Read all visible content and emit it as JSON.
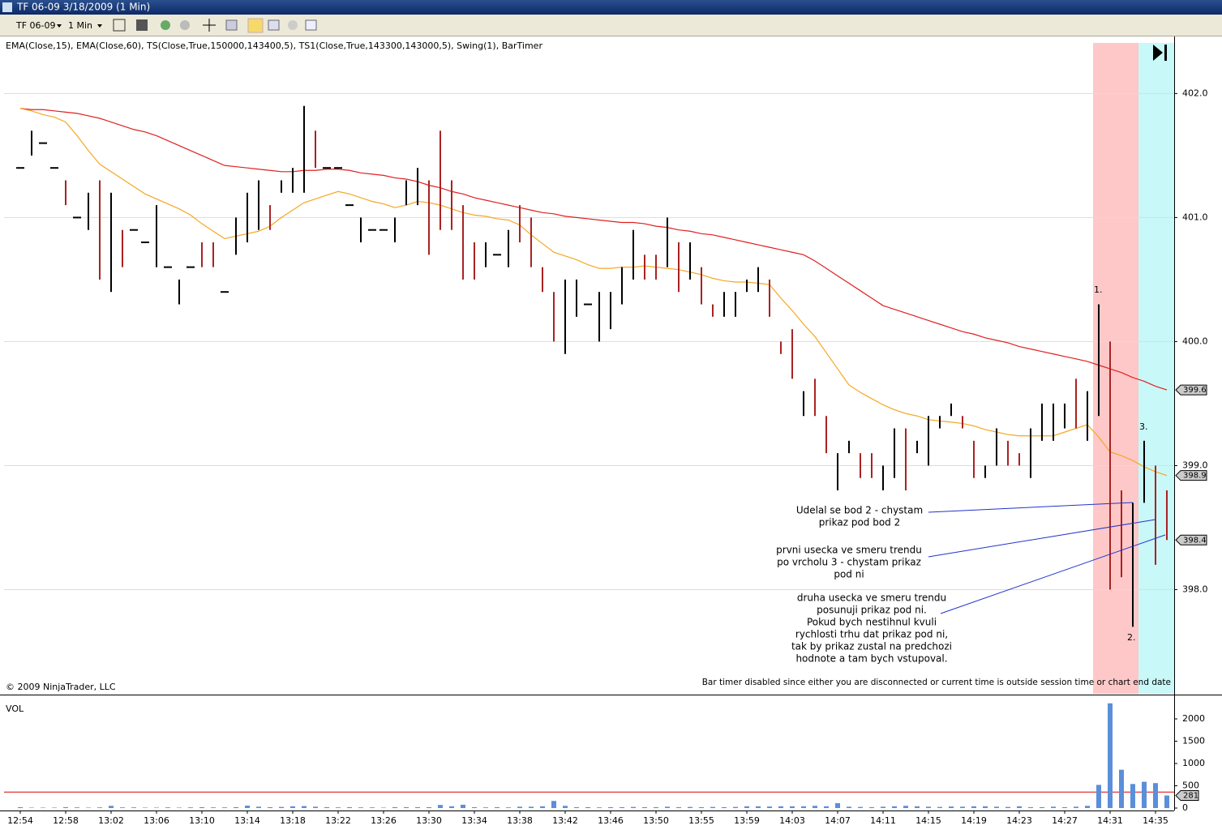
{
  "window": {
    "title": "TF 06-09  3/18/2009 (1 Min)",
    "instrument": "TF 06-09",
    "interval": "1 Min"
  },
  "chart_data": [
    {
      "type": "ohlc",
      "indicators": "EMA(Close,15), EMA(Close,60), TS(Close,True,150000,143400,5), TS1(Close,True,143300,143000,5), Swing(1), BarTimer",
      "copyright": "© 2009 NinjaTrader, LLC",
      "status": "Bar timer disabled since either you are disconnected or current time is outside session time or chart end date",
      "ylim": [
        397.16,
        402.46
      ],
      "yticks": [
        {
          "value": 398,
          "label": "398.0"
        },
        {
          "value": 399,
          "label": "399.0"
        },
        {
          "value": 400,
          "label": "400.0"
        },
        {
          "value": 401,
          "label": "401.0"
        },
        {
          "value": 402,
          "label": "402.0"
        }
      ],
      "grid": true,
      "high": [
        401.4,
        401.7,
        401.6,
        401.4,
        401.3,
        401.0,
        401.2,
        401.3,
        401.2,
        400.9,
        400.9,
        400.8,
        401.1,
        400.6,
        400.5,
        400.6,
        400.8,
        400.8,
        400.4,
        401.0,
        401.2,
        401.3,
        401.1,
        401.3,
        401.4,
        401.9,
        401.7,
        401.4,
        401.4,
        401.1,
        401.0,
        400.9,
        400.9,
        401.0,
        401.3,
        401.4,
        401.3,
        401.7,
        401.3,
        401.1,
        400.8,
        400.8,
        400.7,
        400.9,
        401.1,
        401.0,
        400.6,
        400.4,
        400.5,
        400.5,
        400.3,
        400.4,
        400.4,
        400.6,
        400.9,
        400.7,
        400.7,
        401.0,
        400.8,
        400.8,
        400.6,
        400.3,
        400.4,
        400.4,
        400.5,
        400.6,
        400.5,
        400.0,
        400.1,
        399.6,
        399.7,
        399.4,
        399.1,
        399.2,
        399.1,
        399.1,
        399.0,
        399.3,
        399.3,
        399.2,
        399.4,
        399.4,
        399.5,
        399.4,
        399.2,
        399.0,
        399.3,
        399.2,
        399.1,
        399.3,
        399.5,
        399.5,
        399.5,
        399.7,
        399.6,
        400.3,
        400.0,
        398.8,
        398.7,
        399.2,
        399.0,
        398.8
      ],
      "low": [
        401.4,
        401.5,
        401.6,
        401.4,
        401.1,
        401.0,
        400.9,
        400.5,
        400.4,
        400.6,
        400.9,
        400.8,
        400.6,
        400.6,
        400.3,
        400.6,
        400.6,
        400.6,
        400.4,
        400.7,
        400.8,
        400.9,
        400.9,
        401.2,
        401.2,
        401.2,
        401.4,
        401.4,
        401.4,
        401.1,
        400.8,
        400.9,
        400.9,
        400.8,
        401.1,
        401.1,
        400.7,
        400.9,
        400.9,
        400.5,
        400.5,
        400.6,
        400.7,
        400.6,
        400.8,
        400.6,
        400.4,
        400.0,
        399.9,
        400.2,
        400.3,
        400.0,
        400.1,
        400.3,
        400.5,
        400.5,
        400.5,
        400.6,
        400.4,
        400.5,
        400.3,
        400.2,
        400.2,
        400.2,
        400.4,
        400.4,
        400.2,
        399.9,
        399.7,
        399.4,
        399.4,
        399.1,
        398.8,
        399.1,
        398.9,
        398.9,
        398.8,
        398.9,
        398.8,
        399.1,
        399.0,
        399.3,
        399.4,
        399.3,
        398.9,
        398.9,
        399.0,
        399.0,
        399.0,
        398.9,
        399.2,
        399.2,
        399.3,
        399.3,
        399.2,
        399.4,
        398.0,
        398.1,
        397.7,
        398.7,
        398.2,
        398.4
      ],
      "colors": [
        "#000",
        "#000",
        "#000",
        "#000",
        "#a22",
        "#000",
        "#000",
        "#a22",
        "#000",
        "#a22",
        "#000",
        "#000",
        "#000",
        "#000",
        "#000",
        "#000",
        "#a22",
        "#a22",
        "#000",
        "#000",
        "#000",
        "#000",
        "#a22",
        "#000",
        "#000",
        "#000",
        "#a22",
        "#000",
        "#000",
        "#000",
        "#000",
        "#000",
        "#000",
        "#000",
        "#000",
        "#000",
        "#a22",
        "#a22",
        "#a22",
        "#a22",
        "#a22",
        "#000",
        "#000",
        "#000",
        "#a22",
        "#a22",
        "#a22",
        "#a22",
        "#000",
        "#000",
        "#000",
        "#000",
        "#000",
        "#000",
        "#000",
        "#a22",
        "#a22",
        "#000",
        "#a22",
        "#000",
        "#a22",
        "#a22",
        "#000",
        "#000",
        "#000",
        "#000",
        "#a22",
        "#a22",
        "#a22",
        "#000",
        "#a22",
        "#a22",
        "#000",
        "#000",
        "#a22",
        "#a22",
        "#000",
        "#000",
        "#a22",
        "#000",
        "#000",
        "#000",
        "#000",
        "#a22",
        "#a22",
        "#000",
        "#000",
        "#a22",
        "#a22",
        "#000",
        "#000",
        "#000",
        "#000",
        "#a22",
        "#000",
        "#000",
        "#a22",
        "#a22",
        "#000",
        "#000",
        "#a22",
        "#a22"
      ],
      "close_label": "398.4",
      "series": [
        {
          "name": "EMA(Close,60)",
          "color": "#e02020",
          "last_label": "399.6",
          "values": [
            401.88,
            401.87,
            401.87,
            401.86,
            401.85,
            401.84,
            401.82,
            401.8,
            401.77,
            401.74,
            401.71,
            401.69,
            401.66,
            401.62,
            401.58,
            401.54,
            401.5,
            401.46,
            401.42,
            401.41,
            401.4,
            401.39,
            401.38,
            401.37,
            401.37,
            401.38,
            401.38,
            401.39,
            401.39,
            401.38,
            401.36,
            401.35,
            401.34,
            401.32,
            401.31,
            401.29,
            401.26,
            401.24,
            401.21,
            401.19,
            401.16,
            401.14,
            401.12,
            401.1,
            401.08,
            401.06,
            401.04,
            401.03,
            401.01,
            401.0,
            400.99,
            400.98,
            400.97,
            400.96,
            400.96,
            400.95,
            400.93,
            400.92,
            400.9,
            400.89,
            400.87,
            400.86,
            400.84,
            400.82,
            400.8,
            400.78,
            400.76,
            400.74,
            400.72,
            400.7,
            400.65,
            400.59,
            400.53,
            400.47,
            400.41,
            400.35,
            400.29,
            400.26,
            400.23,
            400.2,
            400.17,
            400.14,
            400.11,
            400.08,
            400.06,
            400.03,
            400.01,
            399.99,
            399.96,
            399.94,
            399.92,
            399.9,
            399.88,
            399.86,
            399.84,
            399.81,
            399.78,
            399.75,
            399.71,
            399.68,
            399.64,
            399.61
          ]
        },
        {
          "name": "EMA(Close,15)",
          "color": "#f5a623",
          "last_label": "398.9",
          "values": [
            401.88,
            401.86,
            401.83,
            401.81,
            401.77,
            401.66,
            401.54,
            401.43,
            401.37,
            401.31,
            401.25,
            401.19,
            401.15,
            401.11,
            401.07,
            401.02,
            400.95,
            400.89,
            400.83,
            400.85,
            400.87,
            400.89,
            400.93,
            401.0,
            401.06,
            401.12,
            401.15,
            401.18,
            401.21,
            401.19,
            401.16,
            401.13,
            401.11,
            401.08,
            401.1,
            401.13,
            401.12,
            401.1,
            401.07,
            401.04,
            401.02,
            401.01,
            400.99,
            400.98,
            400.94,
            400.86,
            400.79,
            400.72,
            400.69,
            400.66,
            400.62,
            400.59,
            400.59,
            400.6,
            400.6,
            400.61,
            400.6,
            400.59,
            400.58,
            400.56,
            400.54,
            400.51,
            400.49,
            400.48,
            400.48,
            400.47,
            400.46,
            400.35,
            400.25,
            400.14,
            400.04,
            399.91,
            399.78,
            399.65,
            399.59,
            399.54,
            399.49,
            399.45,
            399.42,
            399.4,
            399.37,
            399.36,
            399.35,
            399.34,
            399.32,
            399.29,
            399.27,
            399.25,
            399.24,
            399.24,
            399.24,
            399.24,
            399.27,
            399.3,
            399.33,
            399.23,
            399.11,
            399.08,
            399.04,
            398.99,
            398.95,
            398.92
          ]
        }
      ],
      "annotations": {
        "point_1": "1.",
        "point_2": "2.",
        "point_3": "3.",
        "note_1": [
          "Udelal se bod 2 - chystam",
          "prikaz pod bod 2"
        ],
        "note_2": [
          "prvni usecka ve smeru trendu",
          "po vrcholu 3 - chystam prikaz",
          "pod ni"
        ],
        "note_3": [
          "druha usecka ve smeru trendu",
          "posunuji prikaz pod ni.",
          "Pokud bych nestihnul kvuli",
          "rychlosti trhu dat prikaz pod ni,",
          "tak by prikaz zustal na predchozi",
          "hodnote a tam bych vstupoval."
        ]
      }
    },
    {
      "type": "bar",
      "title": "VOL",
      "color": "#5b8fd9",
      "ylim": [
        0,
        2500
      ],
      "yticks": [
        0,
        500,
        1000,
        1500,
        2000
      ],
      "average": 360,
      "last_label": "281",
      "categories": [
        "12:54",
        null,
        null,
        null,
        "12:58",
        null,
        null,
        null,
        "13:02",
        null,
        null,
        null,
        "13:06",
        null,
        null,
        null,
        "13:10",
        null,
        null,
        null,
        "13:14",
        null,
        null,
        null,
        "13:18",
        null,
        null,
        null,
        "13:22",
        null,
        null,
        null,
        "13:26",
        null,
        null,
        null,
        "13:30",
        null,
        null,
        null,
        "13:34",
        null,
        null,
        null,
        "13:38",
        null,
        null,
        null,
        "13:42",
        null,
        null,
        null,
        "13:46",
        null,
        null,
        null,
        "13:50",
        null,
        null,
        null,
        "13:55",
        null,
        null,
        null,
        "13:59",
        null,
        null,
        null,
        "14:03",
        null,
        null,
        null,
        "14:07",
        null,
        null,
        null,
        "14:11",
        null,
        null,
        null,
        "14:15",
        null,
        null,
        null,
        "14:19",
        null,
        null,
        null,
        "14:23",
        null,
        null,
        null,
        "14:27",
        null,
        null,
        null,
        "14:31",
        null,
        null,
        null,
        "14:35",
        null
      ],
      "values": [
        20,
        10,
        10,
        10,
        20,
        15,
        10,
        15,
        50,
        15,
        15,
        10,
        10,
        15,
        10,
        15,
        20,
        15,
        15,
        20,
        55,
        30,
        20,
        25,
        40,
        45,
        30,
        20,
        15,
        20,
        15,
        15,
        10,
        20,
        20,
        20,
        20,
        70,
        40,
        75,
        20,
        15,
        20,
        15,
        30,
        30,
        40,
        160,
        50,
        20,
        20,
        15,
        20,
        20,
        25,
        20,
        20,
        30,
        20,
        25,
        20,
        25,
        20,
        25,
        40,
        40,
        35,
        40,
        40,
        40,
        50,
        40,
        110,
        30,
        25,
        20,
        30,
        40,
        50,
        40,
        30,
        25,
        35,
        30,
        40,
        40,
        30,
        25,
        40,
        20,
        20,
        30,
        20,
        30,
        50,
        520,
        2350,
        860,
        540,
        590,
        560,
        281
      ]
    }
  ]
}
